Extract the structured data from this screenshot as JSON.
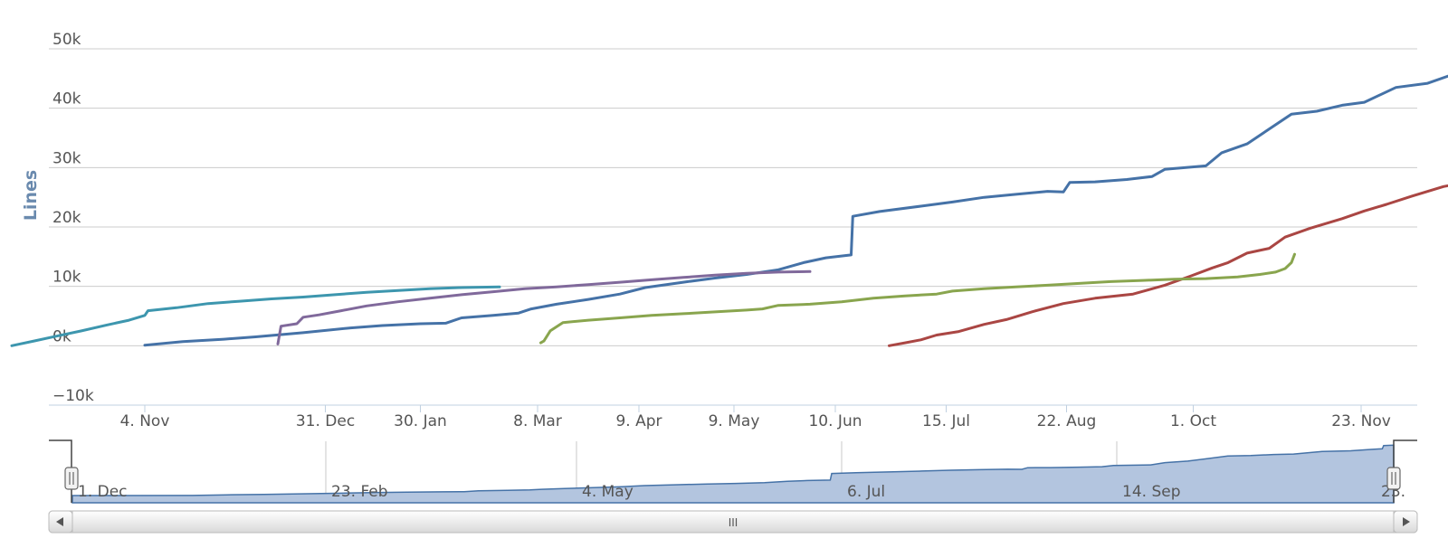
{
  "chart_data": {
    "type": "line",
    "title": "",
    "xlabel": "",
    "ylabel": "Lines",
    "ylim": [
      -10000,
      50000
    ],
    "y_ticks": [
      -10000,
      0,
      10000,
      20000,
      30000,
      40000,
      50000
    ],
    "y_tick_labels": [
      "−10k",
      "0k",
      "10k",
      "20k",
      "30k",
      "40k",
      "50k"
    ],
    "x_tick_labels": [
      "4. Nov",
      "31. Dec",
      "30. Jan",
      "8. Mar",
      "9. Apr",
      "9. May",
      "10. Jun",
      "15. Jul",
      "22. Aug",
      "1. Oct",
      "23. Nov"
    ],
    "x_ticks_day": [
      0,
      57,
      87,
      124,
      156,
      186,
      218,
      253,
      291,
      331,
      384
    ],
    "x_range_day": [
      -42,
      389
    ],
    "grid": true,
    "legend": "none",
    "series": [
      {
        "color": "#4572a7",
        "points": [
          [
            0,
            100
          ],
          [
            12,
            700
          ],
          [
            25,
            1100
          ],
          [
            35,
            1500
          ],
          [
            50,
            2200
          ],
          [
            65,
            3000
          ],
          [
            75,
            3400
          ],
          [
            87,
            3700
          ],
          [
            95,
            3800
          ],
          [
            100,
            4700
          ],
          [
            110,
            5100
          ],
          [
            118,
            5500
          ],
          [
            122,
            6200
          ],
          [
            130,
            7000
          ],
          [
            140,
            7800
          ],
          [
            150,
            8700
          ],
          [
            158,
            9800
          ],
          [
            170,
            10700
          ],
          [
            180,
            11400
          ],
          [
            190,
            12000
          ],
          [
            200,
            12800
          ],
          [
            208,
            14000
          ],
          [
            215,
            14800
          ],
          [
            223,
            15300
          ],
          [
            223.5,
            21800
          ],
          [
            232,
            22600
          ],
          [
            245,
            23500
          ],
          [
            255,
            24200
          ],
          [
            265,
            25000
          ],
          [
            275,
            25500
          ],
          [
            285,
            26000
          ],
          [
            290,
            25900
          ],
          [
            292,
            27500
          ],
          [
            300,
            27600
          ],
          [
            310,
            28000
          ],
          [
            318,
            28500
          ],
          [
            322,
            29700
          ],
          [
            335,
            30300
          ],
          [
            340,
            32500
          ],
          [
            348,
            34000
          ],
          [
            355,
            36500
          ],
          [
            362,
            39000
          ],
          [
            370,
            39500
          ],
          [
            378,
            40500
          ],
          [
            385,
            41000
          ],
          [
            395,
            43500
          ],
          [
            405,
            44200
          ],
          [
            412,
            45500
          ],
          [
            416,
            46200
          ],
          [
            416.5,
            49400
          ],
          [
            420,
            49700
          ]
        ]
      },
      {
        "color": "#aa4643",
        "points": [
          [
            235,
            0
          ],
          [
            240,
            500
          ],
          [
            245,
            1000
          ],
          [
            250,
            1800
          ],
          [
            257,
            2400
          ],
          [
            265,
            3600
          ],
          [
            272,
            4400
          ],
          [
            280,
            5700
          ],
          [
            290,
            7100
          ],
          [
            300,
            8000
          ],
          [
            312,
            8700
          ],
          [
            322,
            10200
          ],
          [
            330,
            11700
          ],
          [
            337,
            13100
          ],
          [
            342,
            14000
          ],
          [
            348,
            15600
          ],
          [
            355,
            16400
          ],
          [
            360,
            18300
          ],
          [
            368,
            19800
          ],
          [
            378,
            21400
          ],
          [
            385,
            22700
          ],
          [
            392,
            23800
          ],
          [
            400,
            25200
          ],
          [
            410,
            26800
          ],
          [
            418,
            27600
          ],
          [
            422,
            27800
          ]
        ]
      },
      {
        "color": "#89a54e",
        "points": [
          [
            125,
            500
          ],
          [
            126,
            800
          ],
          [
            128,
            2500
          ],
          [
            132,
            3900
          ],
          [
            140,
            4300
          ],
          [
            150,
            4700
          ],
          [
            160,
            5100
          ],
          [
            170,
            5400
          ],
          [
            180,
            5700
          ],
          [
            190,
            6000
          ],
          [
            195,
            6200
          ],
          [
            200,
            6800
          ],
          [
            210,
            7000
          ],
          [
            220,
            7400
          ],
          [
            230,
            8000
          ],
          [
            240,
            8400
          ],
          [
            250,
            8700
          ],
          [
            255,
            9200
          ],
          [
            265,
            9600
          ],
          [
            275,
            9900
          ],
          [
            285,
            10200
          ],
          [
            295,
            10500
          ],
          [
            305,
            10800
          ],
          [
            315,
            11000
          ],
          [
            325,
            11200
          ],
          [
            335,
            11300
          ],
          [
            345,
            11600
          ],
          [
            352,
            12000
          ],
          [
            357,
            12400
          ],
          [
            360,
            13000
          ],
          [
            362,
            14000
          ],
          [
            363,
            15400
          ]
        ]
      },
      {
        "color": "#80699b",
        "points": [
          [
            42,
            300
          ],
          [
            43,
            3300
          ],
          [
            48,
            3700
          ],
          [
            50,
            4800
          ],
          [
            55,
            5200
          ],
          [
            62,
            5900
          ],
          [
            70,
            6700
          ],
          [
            80,
            7400
          ],
          [
            90,
            8000
          ],
          [
            100,
            8600
          ],
          [
            110,
            9100
          ],
          [
            120,
            9600
          ],
          [
            130,
            9900
          ],
          [
            140,
            10300
          ],
          [
            150,
            10700
          ],
          [
            160,
            11100
          ],
          [
            170,
            11500
          ],
          [
            180,
            11900
          ],
          [
            190,
            12200
          ],
          [
            200,
            12400
          ],
          [
            210,
            12500
          ]
        ]
      },
      {
        "color": "#3d96ae",
        "points": [
          [
            -42,
            0
          ],
          [
            -35,
            800
          ],
          [
            -28,
            1600
          ],
          [
            -20,
            2500
          ],
          [
            -12,
            3500
          ],
          [
            -5,
            4300
          ],
          [
            0,
            5100
          ],
          [
            1,
            5900
          ],
          [
            10,
            6400
          ],
          [
            20,
            7100
          ],
          [
            30,
            7500
          ],
          [
            40,
            7900
          ],
          [
            50,
            8200
          ],
          [
            60,
            8600
          ],
          [
            70,
            9000
          ],
          [
            80,
            9300
          ],
          [
            90,
            9600
          ],
          [
            100,
            9800
          ],
          [
            112,
            9900
          ]
        ]
      }
    ],
    "navigator": {
      "x_tick_labels": [
        "1. Dec",
        "23. Feb",
        "4. May",
        "6. Jul",
        "14. Sep",
        "23."
      ],
      "fill_color": "#b3c5df",
      "line_color": "#4572a7",
      "scrollbar_grip": "III"
    }
  }
}
